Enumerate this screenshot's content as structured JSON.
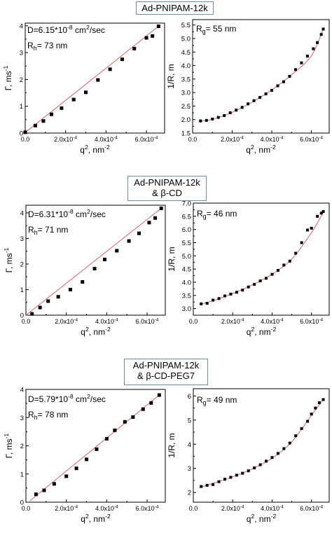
{
  "sections": [
    {
      "title_lines": [
        "Ad-PNIPAM-12k"
      ]
    },
    {
      "title_lines": [
        "Ad-PNIPAM-12k",
        "& β-CD"
      ]
    },
    {
      "title_lines": [
        "Ad-PNIPAM-12k",
        "& β-CD-PEG7"
      ]
    }
  ],
  "colors": {
    "marker": "#000000",
    "fit_line": "#e06060",
    "frame": "#000000",
    "title_border": "#6a8fa8"
  },
  "chart_data": [
    {
      "id": "s1-left",
      "type": "scatter",
      "fit": "line",
      "xlabel": "q², nm⁻²",
      "ylabel": "Γ, ms⁻¹",
      "xlim": [
        0,
        0.00069
      ],
      "ylim": [
        0,
        4.1
      ],
      "xticks": [
        0,
        0.0002,
        0.0004,
        0.0006
      ],
      "xtick_labels": [
        "0.0",
        "2.0x10⁻⁴",
        "4.0x10⁻⁴",
        "6.0x10⁻⁴"
      ],
      "yticks": [
        0,
        1,
        2,
        3,
        4
      ],
      "ytick_labels": [
        "0",
        "1",
        "2",
        "3",
        "4"
      ],
      "annotations": [
        "D=6.15*10⁻⁸ cm²/sec",
        "Rh= 73 nm"
      ],
      "points": [
        [
          0.0,
          0.03
        ],
        [
          5e-05,
          0.28
        ],
        [
          9e-05,
          0.45
        ],
        [
          0.00013,
          0.7
        ],
        [
          0.00018,
          0.93
        ],
        [
          0.00024,
          1.25
        ],
        [
          0.0003,
          1.52
        ],
        [
          0.00036,
          1.98
        ],
        [
          0.00042,
          2.38
        ],
        [
          0.00048,
          2.75
        ],
        [
          0.00054,
          3.15
        ],
        [
          0.0006,
          3.55
        ],
        [
          0.00063,
          3.62
        ],
        [
          0.00066,
          3.98
        ]
      ],
      "fit_line": [
        [
          0,
          0.02
        ],
        [
          0.00066,
          3.98
        ]
      ]
    },
    {
      "id": "s1-right",
      "type": "scatter",
      "fit": "curve",
      "xlabel": "q², nm⁻²",
      "ylabel": "1/R, m",
      "xlim": [
        0,
        0.00069
      ],
      "ylim": [
        1.5,
        5.7
      ],
      "xticks": [
        0,
        0.0002,
        0.0004,
        0.0006
      ],
      "xtick_labels": [
        "0.0",
        "2.0x10⁻⁴",
        "4.0x10⁻⁴",
        "6.0x10⁻⁴"
      ],
      "yticks": [
        1.5,
        2.0,
        2.5,
        3.0,
        3.5,
        4.0,
        4.5,
        5.0,
        5.5
      ],
      "ytick_labels": [
        "1.5",
        "2.0",
        "2.5",
        "3.0",
        "3.5",
        "4.0",
        "4.5",
        "5.0",
        "5.5"
      ],
      "annotations": [
        "Rg= 55 nm"
      ],
      "points": [
        [
          4e-05,
          1.95
        ],
        [
          7e-05,
          1.97
        ],
        [
          0.0001,
          2.02
        ],
        [
          0.00013,
          2.08
        ],
        [
          0.00016,
          2.15
        ],
        [
          0.00019,
          2.25
        ],
        [
          0.00022,
          2.35
        ],
        [
          0.00025,
          2.45
        ],
        [
          0.00028,
          2.58
        ],
        [
          0.00031,
          2.7
        ],
        [
          0.00034,
          2.82
        ],
        [
          0.00037,
          2.95
        ],
        [
          0.0004,
          3.08
        ],
        [
          0.00043,
          3.25
        ],
        [
          0.00046,
          3.4
        ],
        [
          0.00049,
          3.6
        ],
        [
          0.00052,
          3.85
        ],
        [
          0.00055,
          4.1
        ],
        [
          0.00058,
          4.35
        ],
        [
          0.00061,
          4.62
        ],
        [
          0.00063,
          4.85
        ],
        [
          0.00065,
          5.15
        ],
        [
          0.00066,
          5.35
        ]
      ],
      "fit_line": [
        [
          3e-05,
          1.93
        ],
        [
          0.0001,
          2.01
        ],
        [
          0.0002,
          2.27
        ],
        [
          0.0003,
          2.64
        ],
        [
          0.0004,
          3.1
        ],
        [
          0.0005,
          3.66
        ],
        [
          0.0006,
          4.36
        ],
        [
          0.00066,
          5.36
        ]
      ]
    },
    {
      "id": "s2-left",
      "type": "scatter",
      "fit": "line",
      "xlabel": "q², nm⁻²",
      "ylabel": "Γ, ms⁻¹",
      "xlim": [
        0,
        0.00069
      ],
      "ylim": [
        0,
        4.3
      ],
      "xticks": [
        0,
        0.0002,
        0.0004,
        0.0006
      ],
      "xtick_labels": [
        "0.0",
        "2.0x10⁻⁴",
        "4.0x10⁻⁴",
        "6.0x10⁻⁴"
      ],
      "yticks": [
        0,
        1,
        2,
        3,
        4
      ],
      "ytick_labels": [
        "0",
        "1",
        "2",
        "3",
        "4"
      ],
      "annotations": [
        "D=6.31*10⁻⁸ cm²/sec",
        "Rh= 71 nm"
      ],
      "points": [
        [
          3e-05,
          0.05
        ],
        [
          7e-05,
          0.3
        ],
        [
          0.00011,
          0.55
        ],
        [
          0.00016,
          0.72
        ],
        [
          0.00022,
          1.0
        ],
        [
          0.00028,
          1.3
        ],
        [
          0.00034,
          1.82
        ],
        [
          0.00039,
          2.18
        ],
        [
          0.00045,
          2.52
        ],
        [
          0.00051,
          2.9
        ],
        [
          0.00056,
          3.2
        ],
        [
          0.00061,
          3.62
        ],
        [
          0.00064,
          3.8
        ],
        [
          0.00067,
          4.18
        ]
      ],
      "fit_line": [
        [
          0,
          0.0
        ],
        [
          0.00067,
          4.18
        ]
      ]
    },
    {
      "id": "s2-right",
      "type": "scatter",
      "fit": "curve",
      "xlabel": "q², nm⁻²",
      "ylabel": "1/R, m",
      "xlim": [
        0,
        0.00069
      ],
      "ylim": [
        2.75,
        7.0
      ],
      "xticks": [
        0,
        0.0002,
        0.0004,
        0.0006
      ],
      "xtick_labels": [
        "0.0",
        "2.0x10⁻⁴",
        "4.0x10⁻⁴",
        "6.0x10⁻⁴"
      ],
      "yticks": [
        3.0,
        3.5,
        4.0,
        4.5,
        5.0,
        5.5,
        6.0,
        6.5,
        7.0
      ],
      "ytick_labels": [
        "3.0",
        "3.5",
        "4.0",
        "4.5",
        "5.0",
        "5.5",
        "6.0",
        "6.5",
        "7.0"
      ],
      "annotations": [
        "Rg= 46 nm"
      ],
      "points": [
        [
          4e-05,
          3.18
        ],
        [
          7e-05,
          3.2
        ],
        [
          0.0001,
          3.32
        ],
        [
          0.00013,
          3.38
        ],
        [
          0.00016,
          3.48
        ],
        [
          0.00019,
          3.55
        ],
        [
          0.00022,
          3.62
        ],
        [
          0.00025,
          3.7
        ],
        [
          0.00028,
          3.82
        ],
        [
          0.00031,
          3.92
        ],
        [
          0.00034,
          4.05
        ],
        [
          0.00037,
          4.15
        ],
        [
          0.0004,
          4.3
        ],
        [
          0.00043,
          4.45
        ],
        [
          0.00046,
          4.65
        ],
        [
          0.00049,
          4.8
        ],
        [
          0.00052,
          5.1
        ],
        [
          0.00055,
          5.5
        ],
        [
          0.00058,
          5.98
        ],
        [
          0.0006,
          6.05
        ],
        [
          0.00063,
          6.5
        ],
        [
          0.00065,
          6.62
        ],
        [
          0.00066,
          6.68
        ]
      ],
      "fit_line": [
        [
          3e-05,
          3.15
        ],
        [
          0.0001,
          3.3
        ],
        [
          0.0002,
          3.57
        ],
        [
          0.0003,
          3.9
        ],
        [
          0.0004,
          4.3
        ],
        [
          0.0005,
          4.88
        ],
        [
          0.0006,
          5.88
        ],
        [
          0.00066,
          6.66
        ]
      ]
    },
    {
      "id": "s3-left",
      "type": "scatter",
      "fit": "line",
      "xlabel": "q², nm⁻²",
      "ylabel": "Γ, ms⁻¹",
      "xlim": [
        0,
        0.00069
      ],
      "ylim": [
        0,
        4.0
      ],
      "xticks": [
        0,
        0.0002,
        0.0004,
        0.0006
      ],
      "xtick_labels": [
        "0.0",
        "2.0x10⁻⁴",
        "4.0x10⁻⁴",
        "6.0x10⁻⁴"
      ],
      "yticks": [
        0,
        1,
        2,
        3,
        4
      ],
      "ytick_labels": [
        "0",
        "1",
        "2",
        "3",
        "4"
      ],
      "annotations": [
        "D=5.79*10⁻⁸ cm²/sec",
        "Rh= 78 nm"
      ],
      "points": [
        [
          5e-05,
          0.28
        ],
        [
          9e-05,
          0.42
        ],
        [
          0.00014,
          0.65
        ],
        [
          0.0002,
          0.92
        ],
        [
          0.00025,
          1.2
        ],
        [
          0.0003,
          1.52
        ],
        [
          0.00035,
          1.88
        ],
        [
          0.0004,
          2.25
        ],
        [
          0.00044,
          2.55
        ],
        [
          0.00049,
          2.85
        ],
        [
          0.00053,
          3.02
        ],
        [
          0.00058,
          3.3
        ],
        [
          0.00062,
          3.52
        ],
        [
          0.00066,
          3.8
        ]
      ],
      "fit_line": [
        [
          2e-05,
          0.05
        ],
        [
          0.00066,
          3.8
        ]
      ]
    },
    {
      "id": "s3-right",
      "type": "scatter",
      "fit": "curve",
      "xlabel": "q², nm⁻²",
      "ylabel": "1/R, m",
      "xlim": [
        0,
        0.00069
      ],
      "ylim": [
        1.6,
        6.3
      ],
      "xticks": [
        0,
        0.0002,
        0.0004,
        0.0006
      ],
      "xtick_labels": [
        "0.0",
        "2.0x10⁻⁴",
        "4.0x10⁻⁴",
        "6.0x10⁻⁴"
      ],
      "yticks": [
        2,
        3,
        4,
        5,
        6
      ],
      "ytick_labels": [
        "2",
        "3",
        "4",
        "5",
        "6"
      ],
      "annotations": [
        "Rg= 49 nm"
      ],
      "points": [
        [
          4e-05,
          2.25
        ],
        [
          7e-05,
          2.3
        ],
        [
          0.0001,
          2.33
        ],
        [
          0.00013,
          2.45
        ],
        [
          0.00016,
          2.55
        ],
        [
          0.00019,
          2.63
        ],
        [
          0.00022,
          2.72
        ],
        [
          0.00025,
          2.8
        ],
        [
          0.00028,
          2.9
        ],
        [
          0.00031,
          3.02
        ],
        [
          0.00034,
          3.15
        ],
        [
          0.00037,
          3.3
        ],
        [
          0.0004,
          3.45
        ],
        [
          0.00043,
          3.62
        ],
        [
          0.00046,
          3.82
        ],
        [
          0.00049,
          4.05
        ],
        [
          0.00052,
          4.35
        ],
        [
          0.00055,
          4.65
        ],
        [
          0.00058,
          4.95
        ],
        [
          0.0006,
          5.25
        ],
        [
          0.00062,
          5.5
        ],
        [
          0.00064,
          5.72
        ],
        [
          0.00066,
          5.85
        ]
      ],
      "fit_line": [
        [
          3e-05,
          2.2
        ],
        [
          0.0001,
          2.38
        ],
        [
          0.0002,
          2.65
        ],
        [
          0.0003,
          2.98
        ],
        [
          0.0004,
          3.42
        ],
        [
          0.0005,
          4.1
        ],
        [
          0.0006,
          5.2
        ],
        [
          0.00066,
          5.86
        ]
      ]
    }
  ]
}
